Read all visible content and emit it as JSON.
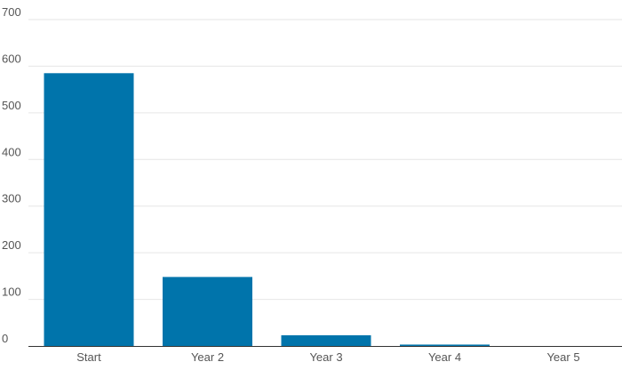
{
  "chart_data": {
    "type": "bar",
    "categories": [
      "Start",
      "Year 2",
      "Year 3",
      "Year 4",
      "Year 5"
    ],
    "values": [
      585,
      148,
      23,
      3,
      0
    ],
    "ylim": [
      0,
      700
    ],
    "yticks": [
      0,
      100,
      200,
      300,
      400,
      500,
      600,
      700
    ],
    "grid": true,
    "bar_color": "#0074ab"
  }
}
